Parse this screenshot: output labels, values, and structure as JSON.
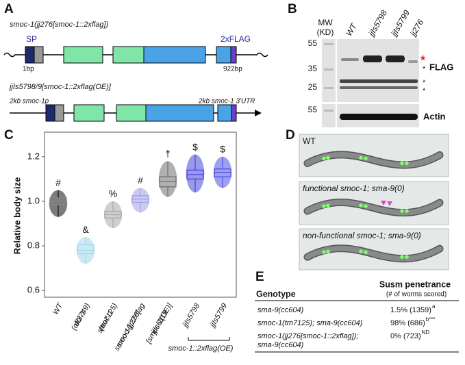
{
  "A": {
    "label": "A",
    "construct1": "smoc-1(jj276[smoc-1::2xflag])",
    "sp": "SP",
    "flag": "2xFLAG",
    "start": "1bp",
    "end": "922bp",
    "construct2": "jjIs5798/9[smoc-1::2xflag(OE)]",
    "promoter": "2kb smoc-1p",
    "utr": "2kb smoc-1 3'UTR"
  },
  "B": {
    "label": "B",
    "mw": [
      "MW",
      "(KD)"
    ],
    "lanes": [
      "WT",
      "jjIs5798",
      "jjIs5799",
      "jj276"
    ],
    "markers": [
      "55",
      "35",
      "25",
      "55"
    ],
    "flag": "FLAG",
    "actin": "Actin",
    "star": "*",
    "asterisks": [
      "*",
      "*",
      "*"
    ]
  },
  "chart_data": {
    "type": "box",
    "label": "C",
    "ylabel": "Relative body size",
    "ylim": [
      0.57,
      1.31
    ],
    "yticks": [
      0.6,
      0.8,
      {
        "value": 1,
        "label": "1.0"
      },
      1.2
    ],
    "categories": [
      [
        "WT"
      ],
      [
        "dbl-1",
        "(ok3749)"
      ],
      [
        "smoc-1",
        "(tm7125)"
      ],
      [
        "smoc-1(jj276[",
        "smoc-1::2xflag"
      ],
      [
        "jjIs5119",
        "[smoc-1(OE)]"
      ],
      [
        "jjIs5798"
      ],
      [
        "jjIs5799"
      ]
    ],
    "boxes": [
      {
        "min": 0.93,
        "q1": 0.985,
        "median": 1.0,
        "q3": 1.015,
        "max": 1.05,
        "color": "#111111"
      },
      {
        "min": 0.72,
        "q1": 0.765,
        "median": 0.78,
        "q3": 0.805,
        "max": 0.84,
        "color": "#9fd8ea"
      },
      {
        "min": 0.88,
        "q1": 0.925,
        "median": 0.94,
        "q3": 0.955,
        "max": 1.0,
        "color": "#a8a8a8"
      },
      {
        "min": 0.95,
        "q1": 0.995,
        "median": 1.01,
        "q3": 1.025,
        "max": 1.06,
        "color": "#a0a0e6"
      },
      {
        "min": 1.02,
        "q1": 1.065,
        "median": 1.09,
        "q3": 1.11,
        "max": 1.18,
        "color": "#707070"
      },
      {
        "min": 1.04,
        "q1": 1.1,
        "median": 1.12,
        "q3": 1.14,
        "max": 1.21,
        "color": "#4646dc"
      },
      {
        "min": 1.06,
        "q1": 1.11,
        "median": 1.13,
        "q3": 1.145,
        "max": 1.2,
        "color": "#5050e4"
      }
    ],
    "annotations": [
      "#",
      "&",
      "%",
      "#",
      "†",
      "$",
      "$"
    ],
    "bracket_label": "smoc-1::2xflag(OE)"
  },
  "D": {
    "label": "D",
    "worms": [
      "WT",
      "functional smoc-1; sma-9(0)",
      "non-functional smoc-1; sma-9(0)"
    ]
  },
  "E": {
    "label": "E",
    "header": [
      "Genotype",
      "Susm penetrance",
      "(# of worms scored)"
    ],
    "rows": [
      {
        "genotype": [
          "sma-9(cc604)"
        ],
        "value": "1.5% (1359)",
        "sup": "a"
      },
      {
        "genotype": [
          "smoc-1(tm7125); sma-9(cc604)"
        ],
        "value": "98% (686)",
        "sup": "b***"
      },
      {
        "genotype": [
          "smoc-1(jj276[smoc-1::2xflag]);",
          "sma-9(cc604)"
        ],
        "value": "0% (723)",
        "sup": "ND"
      }
    ]
  }
}
